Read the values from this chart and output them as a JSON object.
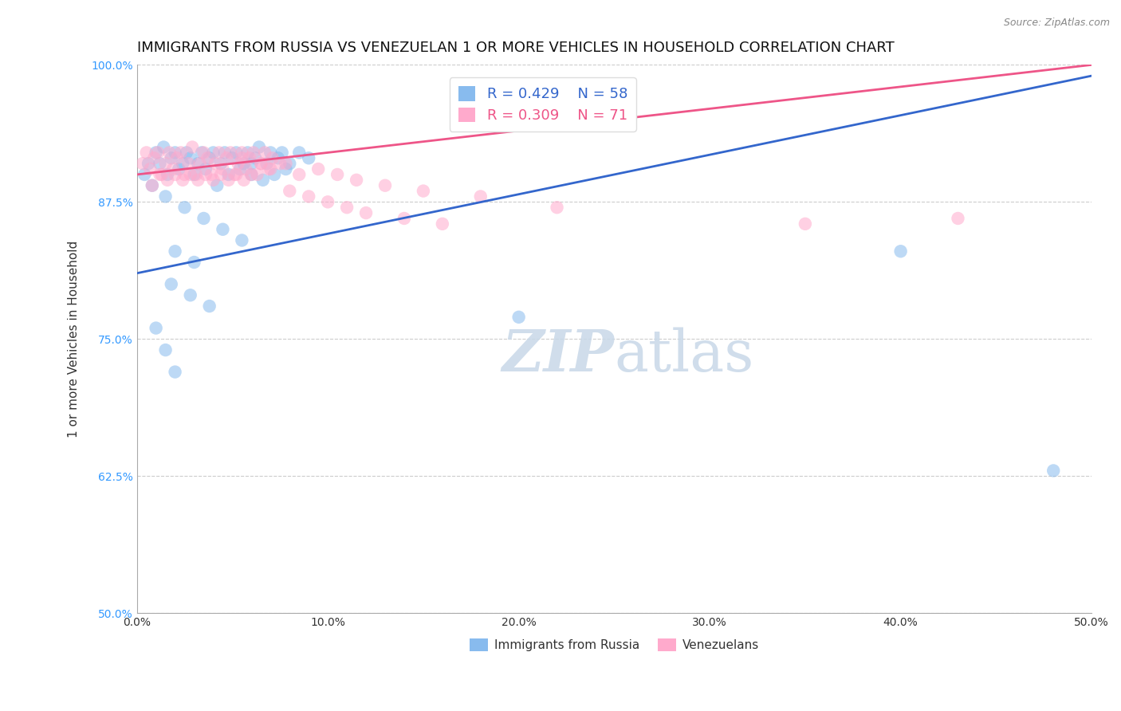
{
  "title": "IMMIGRANTS FROM RUSSIA VS VENEZUELAN 1 OR MORE VEHICLES IN HOUSEHOLD CORRELATION CHART",
  "source": "Source: ZipAtlas.com",
  "ylabel": "1 or more Vehicles in Household",
  "xlim": [
    0.0,
    50.0
  ],
  "ylim": [
    50.0,
    100.0
  ],
  "xticks": [
    0.0,
    10.0,
    20.0,
    30.0,
    40.0,
    50.0
  ],
  "yticks": [
    50.0,
    62.5,
    75.0,
    87.5,
    100.0
  ],
  "russia_color": "#88bbee",
  "venezuela_color": "#ffaacc",
  "russia_line_color": "#3366cc",
  "venezuela_line_color": "#ee5588",
  "russia_R": 0.429,
  "russia_N": 58,
  "venezuela_R": 0.309,
  "venezuela_N": 71,
  "watermark_zip": "ZIP",
  "watermark_atlas": "atlas",
  "background_color": "#ffffff",
  "grid_color": "#cccccc",
  "title_fontsize": 13,
  "axis_label_fontsize": 11,
  "tick_label_fontsize": 10,
  "legend_fontsize": 13,
  "russia_x": [
    0.4,
    0.6,
    0.8,
    1.0,
    1.2,
    1.4,
    1.6,
    1.8,
    2.0,
    2.2,
    2.4,
    2.6,
    2.8,
    3.0,
    3.2,
    3.4,
    3.6,
    3.8,
    4.0,
    4.2,
    4.4,
    4.6,
    4.8,
    5.0,
    5.2,
    5.4,
    5.6,
    5.8,
    6.0,
    6.2,
    6.4,
    6.6,
    6.8,
    7.0,
    7.2,
    7.4,
    7.6,
    7.8,
    8.0,
    1.5,
    2.5,
    3.5,
    4.5,
    5.5,
    2.0,
    3.0,
    1.8,
    2.8,
    3.8,
    1.0,
    1.5,
    2.0,
    20.0,
    40.0,
    48.0,
    8.5,
    9.0,
    6.0
  ],
  "russia_y": [
    90.0,
    91.0,
    89.0,
    92.0,
    91.0,
    92.5,
    90.0,
    91.5,
    92.0,
    90.5,
    91.0,
    92.0,
    91.5,
    90.0,
    91.0,
    92.0,
    90.5,
    91.5,
    92.0,
    89.0,
    91.0,
    92.0,
    90.0,
    91.5,
    92.0,
    90.5,
    91.0,
    92.0,
    90.0,
    91.5,
    92.5,
    89.5,
    91.0,
    92.0,
    90.0,
    91.5,
    92.0,
    90.5,
    91.0,
    88.0,
    87.0,
    86.0,
    85.0,
    84.0,
    83.0,
    82.0,
    80.0,
    79.0,
    78.0,
    76.0,
    74.0,
    72.0,
    77.0,
    83.0,
    63.0,
    92.0,
    91.5,
    91.0
  ],
  "venezuela_x": [
    0.3,
    0.5,
    0.7,
    0.9,
    1.1,
    1.3,
    1.5,
    1.7,
    1.9,
    2.1,
    2.3,
    2.5,
    2.7,
    2.9,
    3.1,
    3.3,
    3.5,
    3.7,
    3.9,
    4.1,
    4.3,
    4.5,
    4.7,
    4.9,
    5.1,
    5.3,
    5.5,
    5.7,
    5.9,
    6.1,
    6.3,
    6.5,
    6.7,
    6.9,
    7.1,
    7.5,
    0.8,
    1.2,
    1.6,
    2.0,
    2.4,
    2.8,
    3.2,
    3.6,
    4.0,
    4.4,
    4.8,
    5.2,
    5.6,
    6.0,
    8.0,
    9.0,
    10.0,
    11.0,
    12.0,
    14.0,
    16.0,
    35.0,
    43.0,
    5.5,
    6.5,
    7.0,
    7.8,
    8.5,
    9.5,
    10.5,
    11.5,
    13.0,
    15.0,
    18.0,
    22.0
  ],
  "venezuela_y": [
    91.0,
    92.0,
    90.5,
    91.5,
    92.0,
    90.0,
    91.0,
    92.0,
    90.5,
    91.5,
    92.0,
    90.0,
    91.0,
    92.5,
    90.0,
    91.0,
    92.0,
    91.5,
    90.0,
    91.0,
    92.0,
    90.5,
    91.5,
    92.0,
    90.0,
    91.0,
    92.0,
    90.5,
    91.5,
    92.0,
    90.0,
    91.0,
    92.0,
    90.5,
    91.5,
    91.0,
    89.0,
    90.0,
    89.5,
    90.0,
    89.5,
    90.0,
    89.5,
    90.0,
    89.5,
    90.0,
    89.5,
    90.0,
    89.5,
    90.0,
    88.5,
    88.0,
    87.5,
    87.0,
    86.5,
    86.0,
    85.5,
    85.5,
    86.0,
    91.5,
    91.0,
    90.5,
    91.0,
    90.0,
    90.5,
    90.0,
    89.5,
    89.0,
    88.5,
    88.0,
    87.0
  ]
}
